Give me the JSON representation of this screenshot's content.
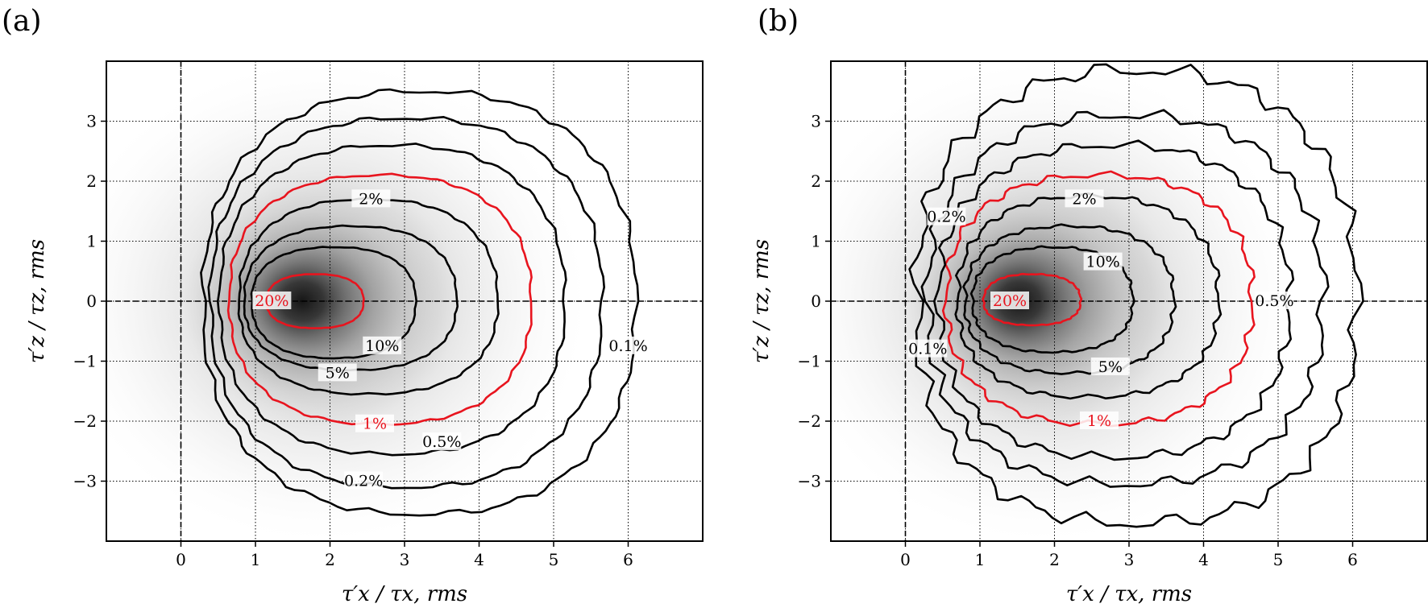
{
  "figure": {
    "panel_tags": [
      "(a)",
      "(b)"
    ]
  },
  "colors": {
    "contour_black": "#000000",
    "contour_red": "#e8141e",
    "grid": "#000000",
    "density_max": "#111111",
    "background": "#ffffff"
  },
  "chart_data": [
    {
      "panel": "(a)",
      "type": "heatmap",
      "subtype": "joint-pdf-with-labelled-contours",
      "xlabel": "τ′x / τx, rms",
      "ylabel": "τ′z / τz, rms",
      "xlim": [
        -1,
        7
      ],
      "ylim": [
        -4,
        4
      ],
      "xticks": [
        0,
        1,
        2,
        3,
        4,
        5,
        6
      ],
      "yticks": [
        -3,
        -2,
        -1,
        0,
        1,
        2,
        3
      ],
      "grid": "dotted",
      "reference_lines": {
        "x": 0,
        "y": 0,
        "style": "dashed"
      },
      "density_peak": {
        "x": 1.75,
        "y": 0
      },
      "contours": [
        {
          "label": "20%",
          "color": "red",
          "x_range": [
            1.15,
            2.45
          ],
          "y_range": [
            -0.45,
            0.45
          ],
          "label_at": [
            1.22,
            0.0
          ]
        },
        {
          "label": "10%",
          "color": "black",
          "x_range": [
            0.95,
            3.15
          ],
          "y_range": [
            -0.95,
            0.9
          ],
          "label_at": [
            2.7,
            -0.75
          ]
        },
        {
          "label": "5%",
          "color": "black",
          "x_range": [
            0.85,
            3.7
          ],
          "y_range": [
            -1.15,
            1.25
          ],
          "label_at": [
            2.1,
            -1.2
          ]
        },
        {
          "label": "2%",
          "color": "black",
          "x_range": [
            0.78,
            4.25
          ],
          "y_range": [
            -1.55,
            1.7
          ],
          "label_at": [
            2.55,
            1.7
          ]
        },
        {
          "label": "1%",
          "color": "red",
          "x_range": [
            0.65,
            4.7
          ],
          "y_range": [
            -2.05,
            2.1
          ],
          "label_at": [
            2.6,
            -2.05
          ]
        },
        {
          "label": "0.5%",
          "color": "black",
          "x_range": [
            0.52,
            5.15
          ],
          "y_range": [
            -2.55,
            2.6
          ],
          "label_at": [
            3.5,
            -2.35
          ]
        },
        {
          "label": "0.2%",
          "color": "black",
          "x_range": [
            0.4,
            5.65
          ],
          "y_range": [
            -3.1,
            3.05
          ],
          "label_at": [
            2.45,
            -3.0
          ]
        },
        {
          "label": "0.1%",
          "color": "black",
          "x_range": [
            0.3,
            6.1
          ],
          "y_range": [
            -3.55,
            3.5
          ],
          "label_at": [
            6.0,
            -0.75
          ]
        }
      ]
    },
    {
      "panel": "(b)",
      "type": "heatmap",
      "subtype": "joint-pdf-with-labelled-contours",
      "xlabel": "τ′x / τx, rms",
      "ylabel": "τ′z / τz, rms",
      "xlim": [
        -1,
        7
      ],
      "ylim": [
        -4,
        4
      ],
      "xticks": [
        0,
        1,
        2,
        3,
        4,
        5,
        6
      ],
      "yticks": [
        -3,
        -2,
        -1,
        0,
        1,
        2,
        3
      ],
      "grid": "dotted",
      "reference_lines": {
        "x": 0,
        "y": 0,
        "style": "dashed"
      },
      "density_peak": {
        "x": 1.7,
        "y": 0
      },
      "contours": [
        {
          "label": "20%",
          "color": "red",
          "x_range": [
            1.05,
            2.35
          ],
          "y_range": [
            -0.4,
            0.45
          ],
          "label_at": [
            1.4,
            0.0
          ]
        },
        {
          "label": "10%",
          "color": "black",
          "x_range": [
            0.9,
            3.05
          ],
          "y_range": [
            -0.85,
            0.9
          ],
          "label_at": [
            2.65,
            0.65
          ]
        },
        {
          "label": "5%",
          "color": "black",
          "x_range": [
            0.8,
            3.6
          ],
          "y_range": [
            -1.2,
            1.25
          ],
          "label_at": [
            2.75,
            -1.1
          ]
        },
        {
          "label": "2%",
          "color": "black",
          "x_range": [
            0.7,
            4.2
          ],
          "y_range": [
            -1.6,
            1.75
          ],
          "label_at": [
            2.4,
            1.7
          ]
        },
        {
          "label": "1%",
          "color": "red",
          "x_range": [
            0.55,
            4.65
          ],
          "y_range": [
            -2.05,
            2.1
          ],
          "label_at": [
            2.6,
            -2.0
          ]
        },
        {
          "label": "0.5%",
          "color": "black",
          "x_range": [
            0.45,
            5.15
          ],
          "y_range": [
            -2.6,
            2.6
          ],
          "label_at": [
            4.95,
            0.0
          ]
        },
        {
          "label": "0.2%",
          "color": "black",
          "x_range": [
            0.3,
            5.6
          ],
          "y_range": [
            -3.05,
            3.1
          ],
          "label_at": [
            0.55,
            1.4
          ]
        },
        {
          "label": "0.1%",
          "color": "black",
          "x_range": [
            0.15,
            6.05
          ],
          "y_range": [
            -3.7,
            3.85
          ],
          "label_at": [
            0.3,
            -0.8
          ]
        }
      ]
    }
  ]
}
